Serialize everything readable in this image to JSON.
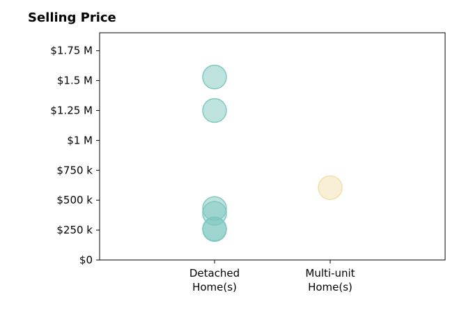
{
  "chart_data": {
    "type": "scatter",
    "title": "Selling Price",
    "categories": [
      "Detached\nHome(s)",
      "Multi-unit\nHome(s)"
    ],
    "ylim": [
      0,
      1900000
    ],
    "yticks": [
      0,
      250000,
      500000,
      750000,
      1000000,
      1250000,
      1500000,
      1750000
    ],
    "ytick_labels": [
      "$0",
      "$250 k",
      "$500 k",
      "$750 k",
      "$1 M",
      "$1.25 M",
      "$1.5 M",
      "$1.75 M"
    ],
    "grid": false,
    "series": [
      {
        "category": "Detached\nHome(s)",
        "color": "#7ec8c0",
        "values": [
          1530000,
          1250000,
          430000,
          390000,
          260000,
          255000
        ]
      },
      {
        "category": "Multi-unit\nHome(s)",
        "color": "#f3dfad",
        "values": [
          605000
        ]
      }
    ]
  }
}
